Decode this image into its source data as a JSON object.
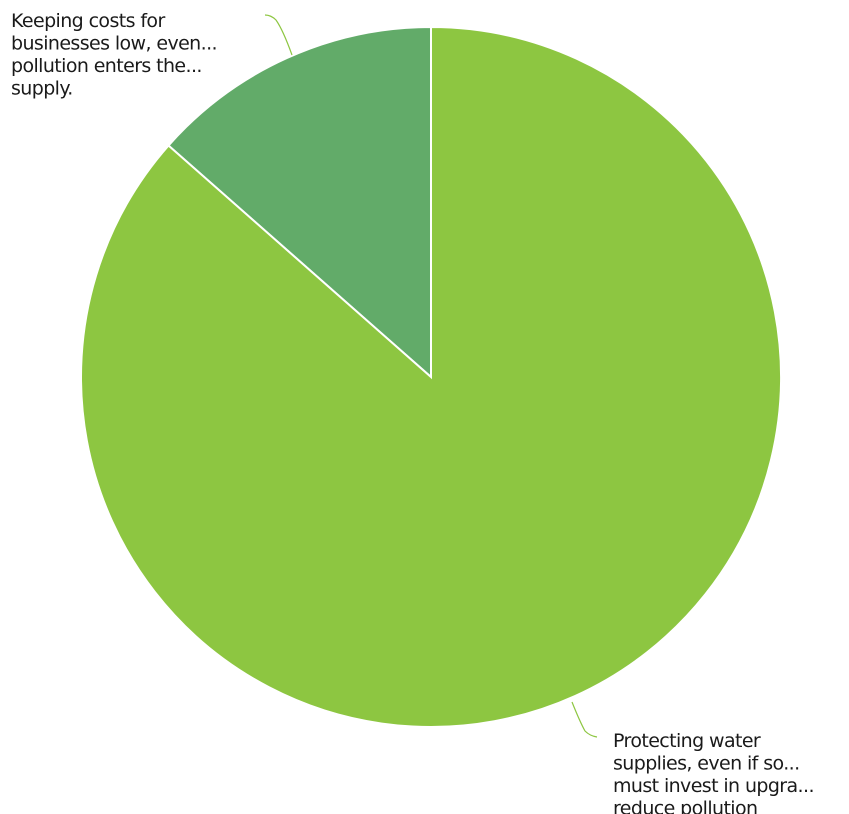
{
  "chart_data": {
    "type": "pie",
    "title": "",
    "slices": [
      {
        "label_lines": [
          "Keeping costs for",
          "businesses low, even...",
          "pollution enters the...",
          "supply."
        ],
        "value": 13.5,
        "color": "#62ab69"
      },
      {
        "label_lines": [
          "Protecting water",
          "supplies, even if so...",
          "must invest in upgra...",
          "reduce pollution"
        ],
        "value": 86.5,
        "color": "#8dc641"
      }
    ],
    "legend": "none",
    "slice_border_color": "#ffffff",
    "leader_line_color": "#8dc641"
  }
}
